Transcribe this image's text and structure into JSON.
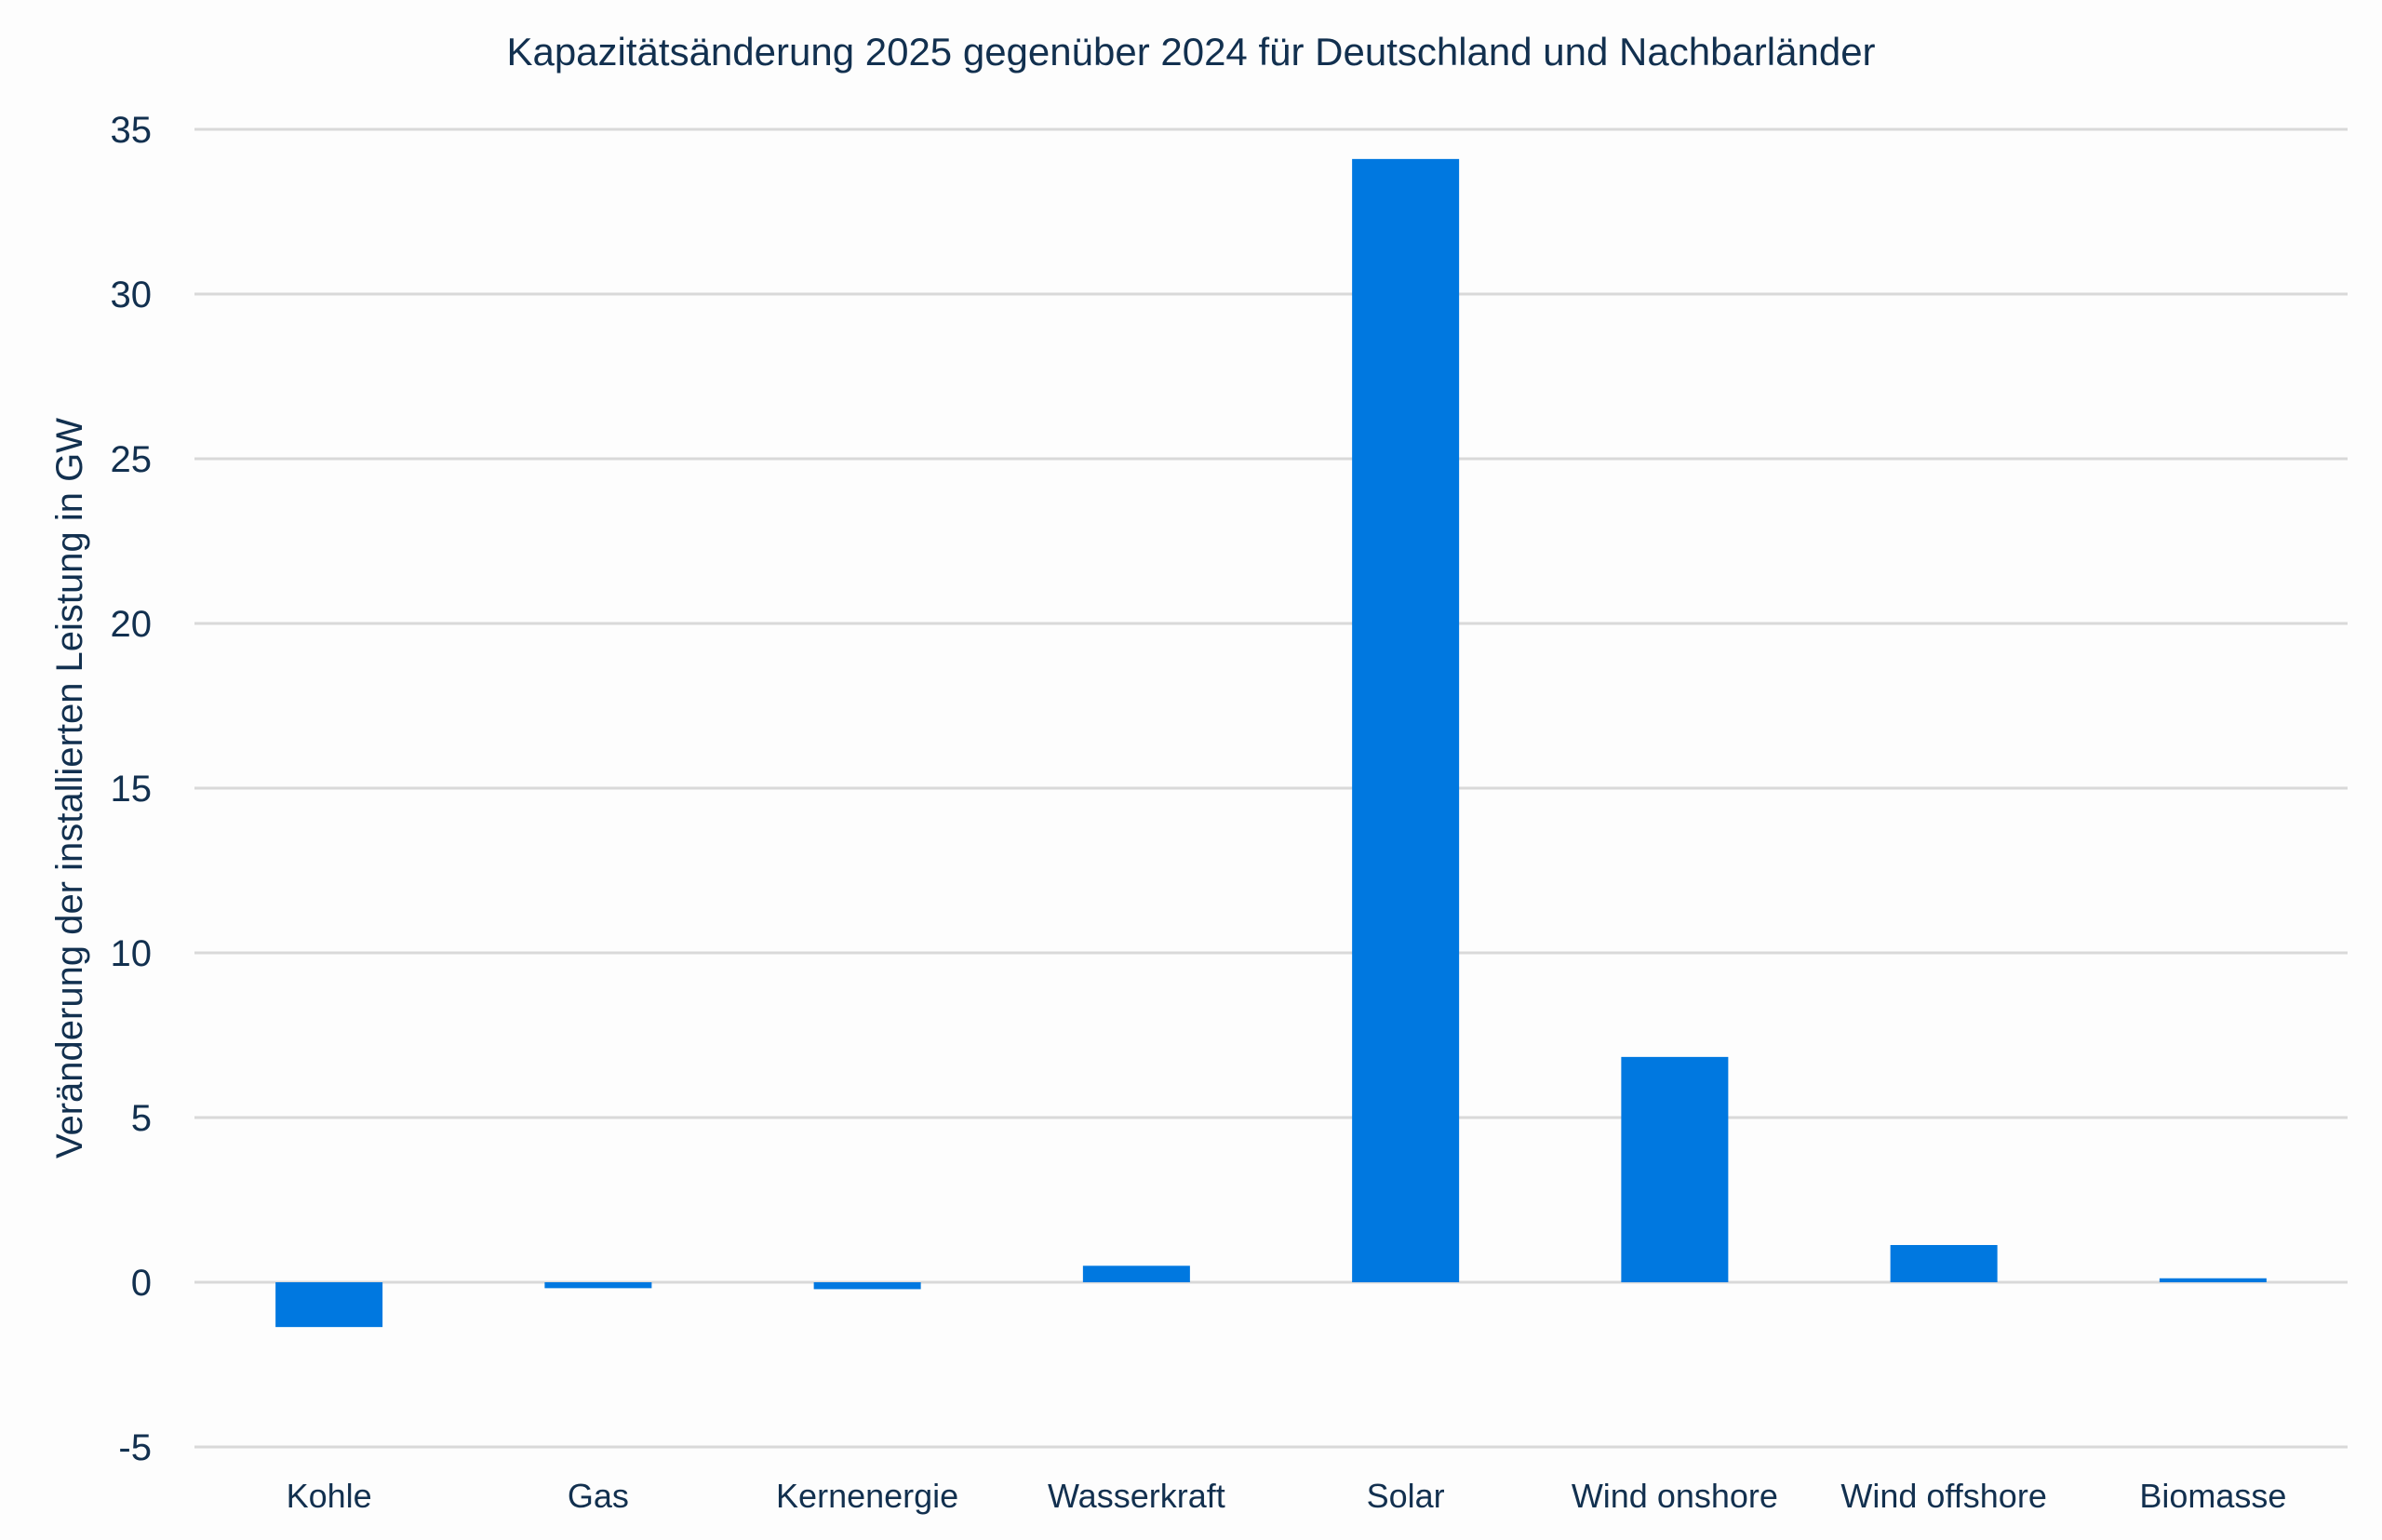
{
  "chart_data": {
    "type": "bar",
    "title": "Kapazitätsänderung 2025 gegenüber 2024 für Deutschland und Nachbarländer",
    "xlabel": "",
    "ylabel": "Veränderung der installierten Leistung in GW",
    "categories": [
      "Kohle",
      "Gas",
      "Kernenergie",
      "Wasserkraft",
      "Solar",
      "Wind onshore",
      "Wind offshore",
      "Biomasse"
    ],
    "values": [
      -1.36,
      -0.18,
      -0.21,
      0.5,
      34.1,
      6.84,
      1.13,
      0.12
    ],
    "ylim": [
      -5,
      35
    ],
    "yticks": [
      35,
      30,
      25,
      20,
      15,
      10,
      5,
      0,
      -5
    ],
    "ytick_labels": [
      "35",
      "30",
      "25",
      "20",
      "15",
      "10",
      "5",
      "0",
      "-5"
    ],
    "grid": true,
    "legend": "none",
    "colors": {
      "bar": "#0078e0",
      "grid": "#d9d9d9",
      "text": "#12304f"
    }
  }
}
